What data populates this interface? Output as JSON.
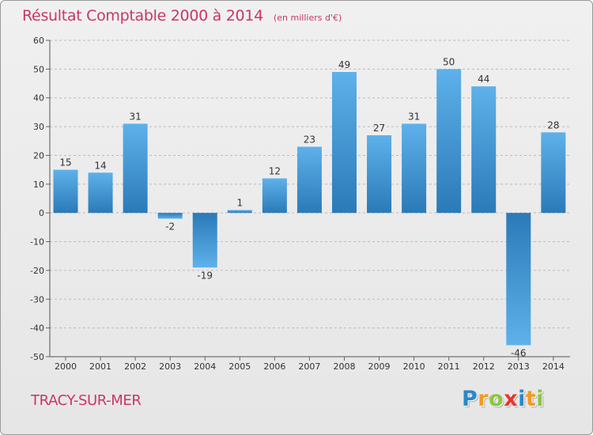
{
  "header": {
    "title": "Résultat Comptable 2000 à 2014",
    "subtitle": "(en milliers d'€)"
  },
  "footer": {
    "commune": "TRACY-SUR-MER",
    "logo": {
      "text": "Proxiti",
      "letters": [
        {
          "ch": "P",
          "color": "#2b87c9"
        },
        {
          "ch": "r",
          "color": "#f29a1f"
        },
        {
          "ch": "o",
          "color": "#8cc63f"
        },
        {
          "ch": "x",
          "color": "#e8352e"
        },
        {
          "ch": "i",
          "color": "#2b87c9"
        },
        {
          "ch": "t",
          "color": "#f29a1f"
        },
        {
          "ch": "i",
          "color": "#8cc63f"
        }
      ]
    }
  },
  "colors": {
    "title": "#c8366a",
    "bar_dark": "#2a7ab8",
    "bar_light": "#5eb1ea",
    "grid": "#bbbbbb",
    "axis_text": "#333333"
  },
  "chart_data": {
    "type": "bar",
    "title": "Résultat Comptable 2000 à 2014",
    "subtitle": "(en milliers d'€)",
    "xlabel": "",
    "ylabel": "",
    "categories": [
      "2000",
      "2001",
      "2002",
      "2003",
      "2004",
      "2005",
      "2006",
      "2007",
      "2008",
      "2009",
      "2010",
      "2011",
      "2012",
      "2013",
      "2014"
    ],
    "values": [
      15,
      14,
      31,
      -2,
      -19,
      1,
      12,
      23,
      49,
      27,
      31,
      50,
      44,
      -46,
      28
    ],
    "ylim": [
      -50,
      60
    ],
    "yticks": [
      -50,
      -40,
      -30,
      -20,
      -10,
      0,
      10,
      20,
      30,
      40,
      50,
      60
    ],
    "grid": true
  }
}
